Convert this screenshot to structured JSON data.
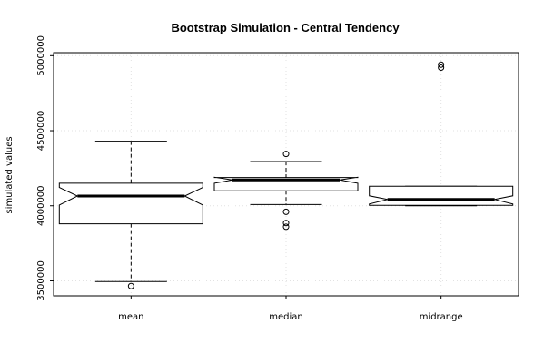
{
  "chart_data": {
    "type": "boxplot",
    "title": "Bootstrap Simulation - Central Tendency",
    "xlabel": "",
    "ylabel": "simulated values",
    "ylim": [
      3400000,
      5020000
    ],
    "y_ticks": [
      3500000,
      4000000,
      4500000,
      5000000
    ],
    "y_tick_labels": [
      "3500000",
      "4000000",
      "4500000",
      "5000000"
    ],
    "grid": true,
    "notched": true,
    "categories": [
      "mean",
      "median",
      "midrange"
    ],
    "boxes": [
      {
        "name": "mean",
        "whisker_low": 3495000,
        "q1": 3880000,
        "notch_low": 4005000,
        "median": 4065000,
        "notch_high": 4122000,
        "q3": 4150000,
        "whisker_high": 4430000,
        "outliers": [
          3465000
        ]
      },
      {
        "name": "median",
        "whisker_low": 4008000,
        "q1": 4100000,
        "notch_low": 4150000,
        "median": 4172000,
        "notch_high": 4190000,
        "q3": 4188000,
        "whisker_high": 4295000,
        "outliers": [
          4345000,
          3960000,
          3885000,
          3860000
        ]
      },
      {
        "name": "midrange",
        "whisker_low": 4000000,
        "q1": 4003000,
        "notch_low": 4012000,
        "median": 4042000,
        "notch_high": 4066000,
        "q3": 4130000,
        "whisker_high": 4130000,
        "outliers": [
          4940000,
          4920000
        ]
      }
    ]
  }
}
